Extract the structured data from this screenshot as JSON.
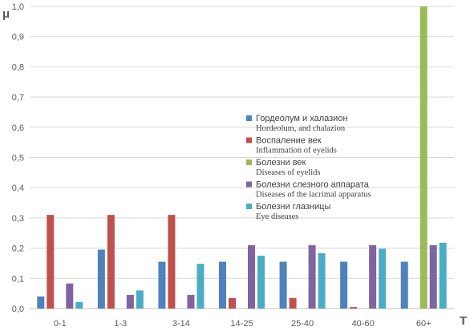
{
  "chart_data": {
    "type": "bar",
    "title": "",
    "ylabel": "μ",
    "xlabel": "T",
    "ylim": [
      0,
      1.0
    ],
    "yticks": [
      "0,0",
      "0,1",
      "0,2",
      "0,3",
      "0,4",
      "0,5",
      "0,6",
      "0,7",
      "0,8",
      "0,9",
      "1,0"
    ],
    "categories": [
      "0-1",
      "1-3",
      "3-14",
      "14-25",
      "25-40",
      "40-60",
      "60+"
    ],
    "grid": true,
    "legend_position": "center-right",
    "series": [
      {
        "name": "Гордеолум и халазион",
        "name_en": "Hordeolum, and chalazion",
        "color": "#4F81BD",
        "values": [
          0.04,
          0.195,
          0.155,
          0.155,
          0.155,
          0.155,
          0.155
        ]
      },
      {
        "name": "Воспаление век",
        "name_en": "Inflammation of eyelids",
        "color": "#C0504D",
        "values": [
          0.31,
          0.31,
          0.31,
          0.035,
          0.035,
          0.005,
          0
        ]
      },
      {
        "name": "Болезни век",
        "name_en": "Diseases of eyelids",
        "color": "#9BBB59",
        "values": [
          0,
          0,
          0,
          0,
          0,
          0,
          1.0
        ]
      },
      {
        "name": "Болезни слезного аппарата",
        "name_en": "Diseases of the lacrimal apparatus",
        "color": "#8064A2",
        "values": [
          0.083,
          0.045,
          0.045,
          0.21,
          0.21,
          0.21,
          0.21
        ]
      },
      {
        "name": "Болезни глазницы",
        "name_en": "Eye diseases",
        "color": "#4BACC6",
        "values": [
          0.022,
          0.06,
          0.148,
          0.175,
          0.183,
          0.198,
          0.218
        ]
      }
    ]
  }
}
